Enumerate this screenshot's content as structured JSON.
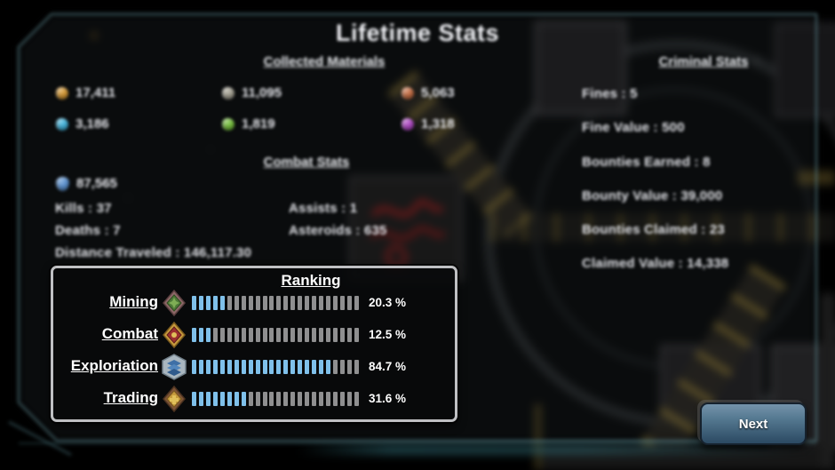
{
  "title": "Lifetime Stats",
  "materials": {
    "header": "Collected Materials",
    "items": [
      {
        "name": "gold-ore",
        "color": "#d79a36",
        "value": "17,411"
      },
      {
        "name": "silver-ore",
        "color": "#a8a596",
        "value": "11,095"
      },
      {
        "name": "copper-ore",
        "color": "#c76f45",
        "value": "5,063"
      },
      {
        "name": "cyan-crystal",
        "color": "#45b5dd",
        "value": "3,186"
      },
      {
        "name": "green-crystal",
        "color": "#78c13f",
        "value": "1,819"
      },
      {
        "name": "purple-crystal",
        "color": "#b04ac4",
        "value": "1,318"
      }
    ],
    "fuel": {
      "name": "fuel",
      "color": "#5d93d1",
      "value": "87,565"
    }
  },
  "combat": {
    "header": "Combat Stats",
    "rows_left": [
      "Kills : 37",
      "Deaths : 7",
      "Distance Traveled : 146,117.30"
    ],
    "rows_right": [
      "Assists : 1",
      "Asteroids : 635"
    ]
  },
  "criminal": {
    "header": "Criminal Stats",
    "rows": [
      "Fines : 5",
      "Fine Value : 500",
      "Bounties Earned : 8",
      "Bounty Value : 39,000",
      "Bounties Claimed : 23",
      "Claimed Value : 14,338"
    ]
  },
  "ranking": {
    "header": "Ranking",
    "total_segments": 24,
    "bar_colors": {
      "filled": "#7fc0ea",
      "empty": "#8f8f90"
    },
    "rows": [
      {
        "label": "Mining",
        "icon": "mining-badge-icon",
        "percent": 20.3,
        "percent_label": "20.3 %"
      },
      {
        "label": "Combat",
        "icon": "combat-badge-icon",
        "percent": 12.5,
        "percent_label": "12.5 %"
      },
      {
        "label": "Exploriation",
        "icon": "exploration-badge-icon",
        "percent": 84.7,
        "percent_label": "84.7 %"
      },
      {
        "label": "Trading",
        "icon": "trading-badge-icon",
        "percent": 31.6,
        "percent_label": "31.6 %"
      }
    ]
  },
  "next_button": {
    "label": "Next"
  }
}
